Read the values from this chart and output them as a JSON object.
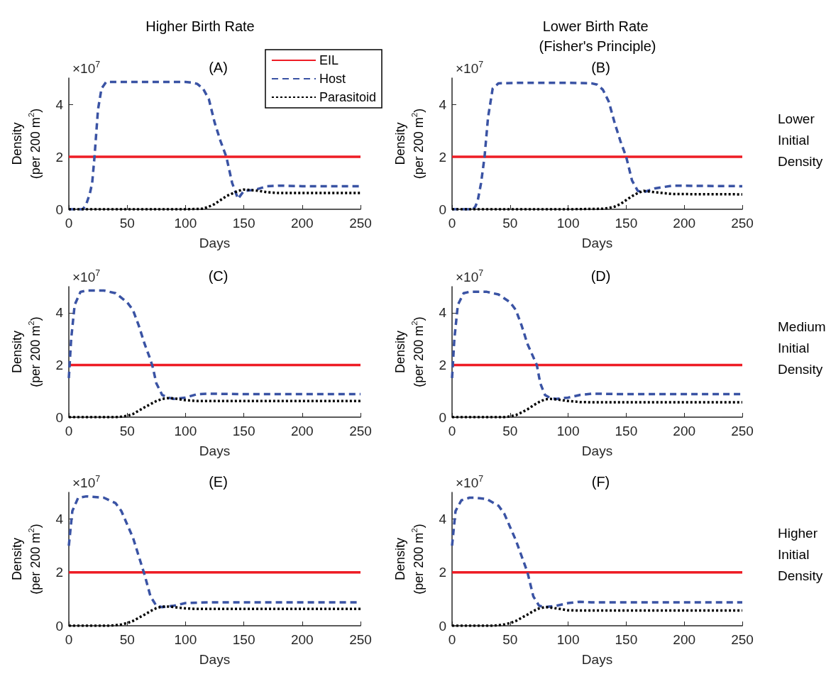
{
  "chart_data": [
    {
      "type": "line",
      "title": "(A)",
      "subtitle": "Higher Birth Rate",
      "xlabel": "Days",
      "ylabel": "Density\n(per 200 m$^{2}$)",
      "annotations": [
        "×10$^{7}$"
      ],
      "xlim": [
        0,
        250
      ],
      "xticks": [
        0,
        50,
        100,
        150,
        200,
        250
      ],
      "ylim": [
        0,
        5
      ],
      "yticks": [
        0,
        2,
        4
      ],
      "marker": "none",
      "legend": "top right",
      "series": [
        {
          "name": "EIL",
          "color": "#ee1c25",
          "line_style": "solid",
          "x": [
            0,
            250
          ],
          "values": [
            2,
            2
          ]
        },
        {
          "name": "Host",
          "color": "#3a53a4",
          "line_style": "dashed",
          "x": [
            0,
            12,
            15,
            18,
            20,
            22,
            25,
            28,
            32,
            40,
            60,
            80,
            100,
            105,
            110,
            115,
            120,
            125,
            130,
            135,
            140,
            145,
            150,
            155,
            160,
            170,
            180,
            200,
            250
          ],
          "values": [
            0,
            0,
            0.2,
            0.6,
            1.0,
            2.0,
            3.8,
            4.6,
            4.85,
            4.85,
            4.85,
            4.85,
            4.85,
            4.83,
            4.78,
            4.6,
            4.2,
            3.3,
            2.6,
            2.0,
            1.0,
            0.4,
            0.7,
            0.72,
            0.75,
            0.88,
            0.9,
            0.88,
            0.88
          ]
        },
        {
          "name": "Parasitoid",
          "color": "#000000",
          "line_style": "dotted",
          "x": [
            0,
            50,
            100,
            115,
            120,
            125,
            130,
            135,
            140,
            145,
            150,
            160,
            170,
            180,
            200,
            250
          ],
          "values": [
            0,
            0,
            0,
            0.02,
            0.1,
            0.2,
            0.35,
            0.5,
            0.6,
            0.7,
            0.75,
            0.72,
            0.65,
            0.62,
            0.62,
            0.62
          ]
        }
      ]
    },
    {
      "type": "line",
      "title": "(B)",
      "subtitle": "Lower Birth Rate (Fisher's Principle)",
      "xlabel": "Days",
      "ylabel": "Density\n(per 200 m$^{2}$)",
      "annotations": [
        "×10$^{7}$",
        "Lower Initial Density"
      ],
      "xlim": [
        0,
        250
      ],
      "xticks": [
        0,
        50,
        100,
        150,
        200,
        250
      ],
      "ylim": [
        0,
        5
      ],
      "yticks": [
        0,
        2,
        4
      ],
      "marker": "none",
      "series": [
        {
          "color": "#ee1c25",
          "line_style": "solid",
          "x": [
            0,
            250
          ],
          "values": [
            2,
            2
          ]
        },
        {
          "color": "#3a53a4",
          "line_style": "dashed",
          "x": [
            0,
            18,
            20,
            22,
            25,
            28,
            31,
            35,
            40,
            60,
            80,
            100,
            120,
            125,
            130,
            135,
            140,
            145,
            150,
            155,
            160,
            165,
            175,
            190,
            250
          ],
          "values": [
            0,
            0,
            0.1,
            0.3,
            1.0,
            2.0,
            3.5,
            4.6,
            4.8,
            4.82,
            4.82,
            4.82,
            4.8,
            4.75,
            4.55,
            4.1,
            3.3,
            2.6,
            2.0,
            1.1,
            0.7,
            0.65,
            0.8,
            0.9,
            0.88
          ]
        },
        {
          "color": "#000000",
          "line_style": "dotted",
          "x": [
            0,
            50,
            100,
            130,
            135,
            140,
            145,
            150,
            155,
            160,
            165,
            175,
            190,
            250
          ],
          "values": [
            0,
            0,
            0,
            0.02,
            0.05,
            0.1,
            0.2,
            0.35,
            0.5,
            0.62,
            0.7,
            0.65,
            0.58,
            0.57
          ]
        }
      ]
    },
    {
      "type": "line",
      "title": "(C)",
      "xlabel": "Days",
      "ylabel": "Density\n(per 200 m$^{2}$)",
      "annotations": [
        "×10$^{7}$"
      ],
      "xlim": [
        0,
        250
      ],
      "xticks": [
        0,
        50,
        100,
        150,
        200,
        250
      ],
      "ylim": [
        0,
        5
      ],
      "yticks": [
        0,
        2,
        4
      ],
      "marker": "none",
      "series": [
        {
          "color": "#ee1c25",
          "line_style": "solid",
          "x": [
            0,
            250
          ],
          "values": [
            2,
            2
          ]
        },
        {
          "color": "#3a53a4",
          "line_style": "dashed",
          "x": [
            0,
            2,
            5,
            10,
            15,
            30,
            40,
            50,
            55,
            60,
            65,
            70,
            72,
            75,
            80,
            85,
            90,
            100,
            110,
            120,
            150,
            250
          ],
          "values": [
            1.5,
            3.0,
            4.3,
            4.8,
            4.85,
            4.85,
            4.75,
            4.4,
            4.1,
            3.5,
            2.8,
            2.2,
            1.9,
            1.3,
            0.85,
            0.75,
            0.7,
            0.75,
            0.88,
            0.9,
            0.88,
            0.88
          ]
        },
        {
          "color": "#000000",
          "line_style": "dotted",
          "x": [
            0,
            40,
            45,
            50,
            55,
            60,
            65,
            70,
            75,
            80,
            85,
            90,
            100,
            110,
            120,
            250
          ],
          "values": [
            0,
            0,
            0.02,
            0.05,
            0.12,
            0.25,
            0.38,
            0.5,
            0.62,
            0.7,
            0.73,
            0.72,
            0.65,
            0.62,
            0.62,
            0.62
          ]
        }
      ]
    },
    {
      "type": "line",
      "title": "(D)",
      "xlabel": "Days",
      "ylabel": "Density\n(per 200 m$^{2}$)",
      "annotations": [
        "×10$^{7}$",
        "Medium Initial Density"
      ],
      "xlim": [
        0,
        250
      ],
      "xticks": [
        0,
        50,
        100,
        150,
        200,
        250
      ],
      "ylim": [
        0,
        5
      ],
      "yticks": [
        0,
        2,
        4
      ],
      "marker": "none",
      "series": [
        {
          "color": "#ee1c25",
          "line_style": "solid",
          "x": [
            0,
            250
          ],
          "values": [
            2,
            2
          ]
        },
        {
          "color": "#3a53a4",
          "line_style": "dashed",
          "x": [
            0,
            2,
            5,
            10,
            15,
            30,
            40,
            50,
            55,
            60,
            65,
            70,
            73,
            76,
            80,
            85,
            90,
            100,
            110,
            120,
            150,
            250
          ],
          "values": [
            1.5,
            3.0,
            4.3,
            4.75,
            4.8,
            4.8,
            4.7,
            4.4,
            4.1,
            3.5,
            2.8,
            2.3,
            2.0,
            1.3,
            0.85,
            0.72,
            0.7,
            0.75,
            0.85,
            0.9,
            0.88,
            0.88
          ]
        },
        {
          "color": "#000000",
          "line_style": "dotted",
          "x": [
            0,
            45,
            50,
            55,
            60,
            65,
            70,
            75,
            80,
            85,
            90,
            100,
            110,
            120,
            250
          ],
          "values": [
            0,
            0,
            0.03,
            0.08,
            0.18,
            0.3,
            0.45,
            0.58,
            0.68,
            0.7,
            0.68,
            0.62,
            0.58,
            0.57,
            0.57
          ]
        }
      ]
    },
    {
      "type": "line",
      "title": "(E)",
      "xlabel": "Days",
      "ylabel": "Density\n(per 200 m$^{2}$)",
      "annotations": [
        "×10$^{7}$"
      ],
      "xlim": [
        0,
        250
      ],
      "xticks": [
        0,
        50,
        100,
        150,
        200,
        250
      ],
      "ylim": [
        0,
        5
      ],
      "yticks": [
        0,
        2,
        4
      ],
      "marker": "none",
      "series": [
        {
          "color": "#ee1c25",
          "line_style": "solid",
          "x": [
            0,
            250
          ],
          "values": [
            2,
            2
          ]
        },
        {
          "color": "#3a53a4",
          "line_style": "dashed",
          "x": [
            0,
            3,
            8,
            15,
            30,
            40,
            45,
            50,
            55,
            60,
            65,
            70,
            75,
            80,
            90,
            100,
            120,
            150,
            250
          ],
          "values": [
            3.0,
            4.3,
            4.8,
            4.85,
            4.8,
            4.6,
            4.3,
            3.8,
            3.3,
            2.6,
            1.9,
            1.1,
            0.75,
            0.7,
            0.75,
            0.85,
            0.88,
            0.88,
            0.88
          ]
        },
        {
          "color": "#000000",
          "line_style": "dotted",
          "x": [
            0,
            35,
            40,
            45,
            50,
            55,
            60,
            65,
            70,
            75,
            80,
            85,
            90,
            100,
            110,
            250
          ],
          "values": [
            0,
            0,
            0.02,
            0.05,
            0.1,
            0.18,
            0.3,
            0.42,
            0.55,
            0.66,
            0.72,
            0.72,
            0.7,
            0.65,
            0.63,
            0.63
          ]
        }
      ]
    },
    {
      "type": "line",
      "title": "(F)",
      "xlabel": "Days",
      "ylabel": "Density\n(per 200 m$^{2}$)",
      "annotations": [
        "×10$^{7}$",
        "Higher Initial Density"
      ],
      "xlim": [
        0,
        250
      ],
      "xticks": [
        0,
        50,
        100,
        150,
        200,
        250
      ],
      "ylim": [
        0,
        5
      ],
      "yticks": [
        0,
        2,
        4
      ],
      "marker": "none",
      "series": [
        {
          "color": "#ee1c25",
          "line_style": "solid",
          "x": [
            0,
            250
          ],
          "values": [
            2,
            2
          ]
        },
        {
          "color": "#3a53a4",
          "line_style": "dashed",
          "x": [
            0,
            3,
            8,
            15,
            20,
            30,
            40,
            45,
            50,
            55,
            60,
            65,
            70,
            75,
            80,
            90,
            100,
            110,
            120,
            150,
            250
          ],
          "values": [
            3.0,
            4.3,
            4.7,
            4.8,
            4.8,
            4.75,
            4.5,
            4.2,
            3.7,
            3.2,
            2.6,
            2.0,
            1.1,
            0.75,
            0.7,
            0.75,
            0.85,
            0.9,
            0.88,
            0.88,
            0.88
          ]
        },
        {
          "color": "#000000",
          "line_style": "dotted",
          "x": [
            0,
            35,
            40,
            45,
            50,
            55,
            60,
            65,
            70,
            75,
            80,
            85,
            90,
            100,
            110,
            250
          ],
          "values": [
            0,
            0,
            0.02,
            0.05,
            0.1,
            0.18,
            0.3,
            0.42,
            0.55,
            0.65,
            0.7,
            0.68,
            0.65,
            0.58,
            0.57,
            0.57
          ]
        }
      ]
    }
  ]
}
